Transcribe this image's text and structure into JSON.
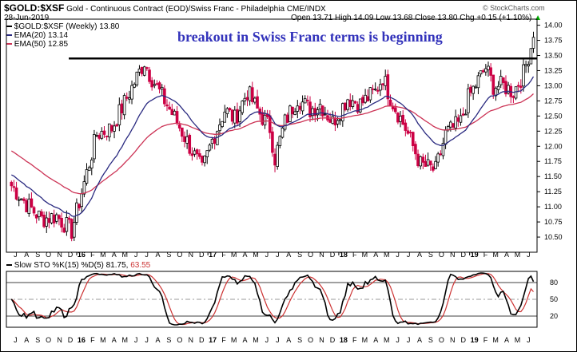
{
  "header": {
    "symbol": "$GOLD:$XSF",
    "description": "Gold - Continuous Contract (EOD)/Swiss Franc - Philadelphia",
    "exchange": "CME/INDX",
    "watermark": "© StockCharts.com",
    "date": "28-Jun-2019",
    "ohlc": "Open 13.71  High 14.09  Low 13.68  Close 13.80  Chg +0.15 (+1.10%)",
    "ohlc_arrow": "▲"
  },
  "annotation": "breakout in Swiss Franc terms is beginning",
  "legend": {
    "main": "$GOLD:$XSF (Weekly) 13.80",
    "ema20": "EMA(20) 13.14",
    "ema50": "EMA(50) 12.85"
  },
  "sto_legend": {
    "label": "Slow STO %K(15) %D(5) 81.75,",
    "d_value": "63.55"
  },
  "colors": {
    "up": "#000000",
    "down": "#cc0044",
    "ema20": "#2a2a80",
    "ema50": "#cc3355",
    "sto_d": "#cc3333",
    "annotation": "#3333bb"
  },
  "chart_data": [
    {
      "type": "candlestick",
      "title": "$GOLD:$XSF (Weekly)",
      "ylim": [
        10.25,
        14.1
      ],
      "y_ticks": [
        "10.50",
        "10.75",
        "11.00",
        "11.25",
        "11.50",
        "11.75",
        "12.00",
        "12.25",
        "12.50",
        "12.75",
        "13.00",
        "13.25",
        "13.50",
        "13.75",
        "14.00"
      ],
      "resistance_level": 13.45,
      "anchor_points": [
        {
          "date": "2015-07-03",
          "close": 11.35
        },
        {
          "date": "2015-08-14",
          "close": 11.05
        },
        {
          "date": "2015-09-25",
          "close": 10.8
        },
        {
          "date": "2015-11-06",
          "close": 10.85
        },
        {
          "date": "2015-12-18",
          "close": 10.6
        },
        {
          "date": "2016-01-22",
          "close": 11.4
        },
        {
          "date": "2016-02-26",
          "close": 12.2
        },
        {
          "date": "2016-04-08",
          "close": 12.3
        },
        {
          "date": "2016-05-20",
          "close": 12.8
        },
        {
          "date": "2016-07-08",
          "close": 13.4
        },
        {
          "date": "2016-07-22",
          "close": 13.2
        },
        {
          "date": "2016-08-19",
          "close": 12.9
        },
        {
          "date": "2016-10-07",
          "close": 12.4
        },
        {
          "date": "2016-11-11",
          "close": 12.0
        },
        {
          "date": "2016-12-16",
          "close": 11.6
        },
        {
          "date": "2017-01-13",
          "close": 12.1
        },
        {
          "date": "2017-02-17",
          "close": 12.6
        },
        {
          "date": "2017-03-17",
          "close": 12.45
        },
        {
          "date": "2017-04-21",
          "close": 12.9
        },
        {
          "date": "2017-05-19",
          "close": 12.6
        },
        {
          "date": "2017-06-23",
          "close": 12.3
        },
        {
          "date": "2017-07-07",
          "close": 11.8
        },
        {
          "date": "2017-08-04",
          "close": 12.4
        },
        {
          "date": "2017-09-08",
          "close": 12.8
        },
        {
          "date": "2017-10-13",
          "close": 12.6
        },
        {
          "date": "2017-11-10",
          "close": 12.7
        },
        {
          "date": "2017-12-15",
          "close": 12.4
        },
        {
          "date": "2018-01-26",
          "close": 12.8
        },
        {
          "date": "2018-03-02",
          "close": 12.7
        },
        {
          "date": "2018-04-13",
          "close": 12.9
        },
        {
          "date": "2018-05-04",
          "close": 13.15
        },
        {
          "date": "2018-05-25",
          "close": 12.8
        },
        {
          "date": "2018-07-06",
          "close": 12.3
        },
        {
          "date": "2018-08-17",
          "close": 11.7
        },
        {
          "date": "2018-09-28",
          "close": 11.6
        },
        {
          "date": "2018-10-26",
          "close": 12.2
        },
        {
          "date": "2018-12-07",
          "close": 12.4
        },
        {
          "date": "2018-12-28",
          "close": 12.8
        },
        {
          "date": "2019-02-15",
          "close": 13.3
        },
        {
          "date": "2019-03-08",
          "close": 13.0
        },
        {
          "date": "2019-04-05",
          "close": 13.0
        },
        {
          "date": "2019-05-03",
          "close": 12.9
        },
        {
          "date": "2019-05-31",
          "close": 13.2
        },
        {
          "date": "2019-06-28",
          "close": 13.8
        }
      ],
      "series": [
        {
          "name": "$GOLD:$XSF (Weekly)",
          "last": 13.8
        },
        {
          "name": "EMA(20)",
          "last": 13.14
        },
        {
          "name": "EMA(50)",
          "last": 12.85
        }
      ]
    },
    {
      "type": "line",
      "title": "Slow STO %K(15) %D(5)",
      "ylim": [
        0,
        100
      ],
      "y_ticks": [
        "20",
        "50",
        "80"
      ],
      "reference_lines": [
        20,
        50,
        80
      ],
      "series": [
        {
          "name": "%K(15)",
          "last": 81.75
        },
        {
          "name": "%D(5)",
          "last": 63.55
        }
      ]
    }
  ],
  "x_axis": {
    "labels": [
      {
        "text": "J",
        "d": "2015-07-01"
      },
      {
        "text": "A",
        "d": "2015-08-01"
      },
      {
        "text": "S",
        "d": "2015-09-01"
      },
      {
        "text": "O",
        "d": "2015-10-01"
      },
      {
        "text": "N",
        "d": "2015-11-01"
      },
      {
        "text": "D",
        "d": "2015-12-01"
      },
      {
        "text": "16",
        "d": "2016-01-01",
        "bold": true
      },
      {
        "text": "F",
        "d": "2016-02-01"
      },
      {
        "text": "M",
        "d": "2016-03-01"
      },
      {
        "text": "A",
        "d": "2016-04-01"
      },
      {
        "text": "M",
        "d": "2016-05-01"
      },
      {
        "text": "J",
        "d": "2016-06-01"
      },
      {
        "text": "J",
        "d": "2016-07-01"
      },
      {
        "text": "A",
        "d": "2016-08-01"
      },
      {
        "text": "S",
        "d": "2016-09-01"
      },
      {
        "text": "O",
        "d": "2016-10-01"
      },
      {
        "text": "N",
        "d": "2016-11-01"
      },
      {
        "text": "D",
        "d": "2016-12-01"
      },
      {
        "text": "17",
        "d": "2017-01-01",
        "bold": true
      },
      {
        "text": "F",
        "d": "2017-02-01"
      },
      {
        "text": "M",
        "d": "2017-03-01"
      },
      {
        "text": "A",
        "d": "2017-04-01"
      },
      {
        "text": "M",
        "d": "2017-05-01"
      },
      {
        "text": "J",
        "d": "2017-06-01"
      },
      {
        "text": "J",
        "d": "2017-07-01"
      },
      {
        "text": "A",
        "d": "2017-08-01"
      },
      {
        "text": "S",
        "d": "2017-09-01"
      },
      {
        "text": "O",
        "d": "2017-10-01"
      },
      {
        "text": "N",
        "d": "2017-11-01"
      },
      {
        "text": "D",
        "d": "2017-12-01"
      },
      {
        "text": "18",
        "d": "2018-01-01",
        "bold": true
      },
      {
        "text": "F",
        "d": "2018-02-01"
      },
      {
        "text": "M",
        "d": "2018-03-01"
      },
      {
        "text": "A",
        "d": "2018-04-01"
      },
      {
        "text": "M",
        "d": "2018-05-01"
      },
      {
        "text": "J",
        "d": "2018-06-01"
      },
      {
        "text": "J",
        "d": "2018-07-01"
      },
      {
        "text": "A",
        "d": "2018-08-01"
      },
      {
        "text": "S",
        "d": "2018-09-01"
      },
      {
        "text": "O",
        "d": "2018-10-01"
      },
      {
        "text": "N",
        "d": "2018-11-01"
      },
      {
        "text": "D",
        "d": "2018-12-01"
      },
      {
        "text": "19",
        "d": "2019-01-01",
        "bold": true
      },
      {
        "text": "F",
        "d": "2019-02-01"
      },
      {
        "text": "M",
        "d": "2019-03-01"
      },
      {
        "text": "A",
        "d": "2019-04-01"
      },
      {
        "text": "M",
        "d": "2019-05-01"
      },
      {
        "text": "J",
        "d": "2019-06-01"
      }
    ]
  }
}
